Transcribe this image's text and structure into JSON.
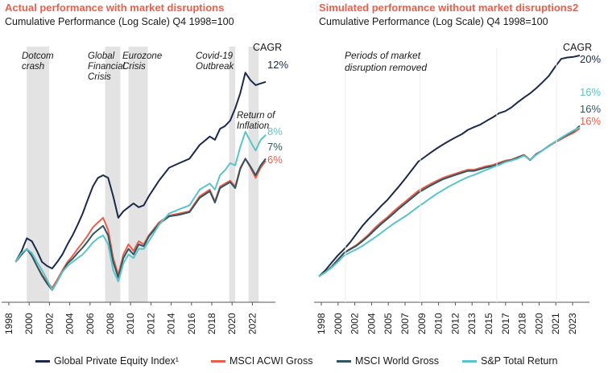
{
  "chart_data": [
    {
      "type": "line",
      "title": "Actual performance with market disruptions",
      "subtitle": "Cumulative Performance (Log Scale) Q4 1998=100",
      "yscale": "log",
      "x_ticks": [
        "1998",
        "2000",
        "2002",
        "2004",
        "2006",
        "2008",
        "2010",
        "2012",
        "2014",
        "2016",
        "2018",
        "2020",
        "2022"
      ],
      "cagr_label": "CAGR",
      "cagr": [
        {
          "series": "Global Private Equity Index¹",
          "label": "12%",
          "color": "#1b2a4a"
        },
        {
          "series": "S&P Total Return",
          "label": "8%",
          "color": "#5bc4c8"
        },
        {
          "series": "MSCI World Gross",
          "label": "7%",
          "color": "#2e5560"
        },
        {
          "series": "MSCI ACWI Gross",
          "label": "6%",
          "color": "#e8604c"
        }
      ],
      "annotations": [
        {
          "text": "Dotcom\ncrash",
          "period": [
            2000.0,
            2002.2
          ]
        },
        {
          "text": "Global\nFinancial\nCrisis",
          "period": [
            2007.7,
            2009.2
          ]
        },
        {
          "text": "Eurozone\nCrisis",
          "period": [
            2010.0,
            2011.9
          ]
        },
        {
          "text": "Covid-19\nOutbreak",
          "period": [
            2019.9,
            2020.5
          ]
        },
        {
          "text": "Return of\nInflation",
          "period": [
            2021.8,
            2022.8
          ]
        }
      ],
      "series": [
        {
          "name": "Global Private Equity Index¹",
          "color": "#1b2a4a",
          "x": [
            1998.9,
            1999.5,
            2000.0,
            2000.5,
            2001.0,
            2001.5,
            2002.0,
            2002.5,
            2003.0,
            2003.5,
            2004.0,
            2004.5,
            2005.0,
            2005.5,
            2006.0,
            2006.5,
            2007.0,
            2007.5,
            2008.0,
            2008.5,
            2009.0,
            2009.5,
            2010.0,
            2010.5,
            2011.0,
            2011.5,
            2012.0,
            2013.0,
            2014.0,
            2015.0,
            2016.0,
            2017.0,
            2018.0,
            2018.5,
            2019.0,
            2019.5,
            2020.0,
            2020.5,
            2021.0,
            2021.5,
            2022.0,
            2022.5,
            2023.0,
            2023.5
          ],
          "values": [
            100,
            115,
            135,
            130,
            115,
            100,
            95,
            92,
            100,
            110,
            125,
            140,
            160,
            185,
            220,
            260,
            290,
            300,
            290,
            230,
            175,
            190,
            200,
            210,
            200,
            205,
            230,
            280,
            330,
            350,
            370,
            440,
            490,
            470,
            540,
            560,
            600,
            700,
            850,
            1100,
            1000,
            940,
            960,
            980
          ]
        },
        {
          "name": "MSCI ACWI Gross",
          "color": "#e8604c",
          "x": [
            1998.9,
            1999.5,
            2000.0,
            2000.5,
            2001.0,
            2001.5,
            2002.0,
            2002.5,
            2003.0,
            2003.5,
            2004.0,
            2004.5,
            2005.0,
            2005.5,
            2006.0,
            2006.5,
            2007.0,
            2007.5,
            2008.0,
            2008.5,
            2009.0,
            2009.5,
            2010.0,
            2010.5,
            2011.0,
            2011.5,
            2012.0,
            2013.0,
            2014.0,
            2015.0,
            2016.0,
            2017.0,
            2018.0,
            2018.5,
            2019.0,
            2019.5,
            2020.0,
            2020.5,
            2021.0,
            2021.5,
            2022.0,
            2022.5,
            2023.0,
            2023.5
          ],
          "values": [
            100,
            110,
            118,
            108,
            95,
            85,
            78,
            72,
            80,
            90,
            100,
            108,
            118,
            128,
            140,
            155,
            165,
            175,
            150,
            105,
            85,
            110,
            125,
            115,
            130,
            125,
            140,
            165,
            180,
            185,
            190,
            230,
            250,
            215,
            260,
            270,
            280,
            260,
            330,
            370,
            330,
            290,
            330,
            360
          ]
        },
        {
          "name": "MSCI World Gross",
          "color": "#2e5560",
          "x": [
            1998.9,
            1999.5,
            2000.0,
            2000.5,
            2001.0,
            2001.5,
            2002.0,
            2002.5,
            2003.0,
            2003.5,
            2004.0,
            2004.5,
            2005.0,
            2005.5,
            2006.0,
            2006.5,
            2007.0,
            2007.5,
            2008.0,
            2008.5,
            2009.0,
            2009.5,
            2010.0,
            2010.5,
            2011.0,
            2011.5,
            2012.0,
            2013.0,
            2014.0,
            2015.0,
            2016.0,
            2017.0,
            2018.0,
            2018.5,
            2019.0,
            2019.5,
            2020.0,
            2020.5,
            2021.0,
            2021.5,
            2022.0,
            2022.5,
            2023.0,
            2023.5
          ],
          "values": [
            100,
            110,
            118,
            108,
            95,
            84,
            76,
            70,
            78,
            88,
            98,
            104,
            112,
            120,
            130,
            142,
            150,
            158,
            140,
            100,
            82,
            105,
            118,
            110,
            125,
            122,
            138,
            162,
            178,
            182,
            188,
            225,
            245,
            212,
            255,
            265,
            275,
            255,
            325,
            370,
            335,
            300,
            340,
            370
          ]
        },
        {
          "name": "S&P Total Return",
          "color": "#5bc4c8",
          "x": [
            1998.9,
            1999.5,
            2000.0,
            2000.5,
            2001.0,
            2001.5,
            2002.0,
            2002.5,
            2003.0,
            2003.5,
            2004.0,
            2004.5,
            2005.0,
            2005.5,
            2006.0,
            2006.5,
            2007.0,
            2007.5,
            2008.0,
            2008.5,
            2009.0,
            2009.5,
            2010.0,
            2010.5,
            2011.0,
            2011.5,
            2012.0,
            2013.0,
            2014.0,
            2015.0,
            2016.0,
            2017.0,
            2018.0,
            2018.5,
            2019.0,
            2019.5,
            2020.0,
            2020.5,
            2021.0,
            2021.5,
            2022.0,
            2022.5,
            2023.0,
            2023.5
          ],
          "values": [
            100,
            112,
            118,
            112,
            100,
            90,
            80,
            70,
            78,
            88,
            95,
            100,
            105,
            110,
            118,
            128,
            135,
            140,
            125,
            90,
            78,
            98,
            110,
            105,
            118,
            118,
            130,
            160,
            185,
            195,
            205,
            250,
            270,
            250,
            300,
            320,
            350,
            340,
            430,
            520,
            460,
            410,
            470,
            500
          ]
        }
      ]
    },
    {
      "type": "line",
      "title": "Simulated performance without market disruptions2",
      "subtitle": "Cumulative Performance (Log Scale) Q4 1998=100",
      "yscale": "log",
      "x_ticks": [
        "1998",
        "2000",
        "2002",
        "2004",
        "2005",
        "2007",
        "2009",
        "2010",
        "2012",
        "2013",
        "2015",
        "2017",
        "2018",
        "2020",
        "2021",
        "2023"
      ],
      "cagr_label": "CAGR",
      "cagr": [
        {
          "series": "Global Private Equity Index¹",
          "label": "20%",
          "color": "#1b2a4a"
        },
        {
          "series": "S&P Total Return",
          "label": "16%",
          "color": "#5bc4c8"
        },
        {
          "series": "MSCI World Gross",
          "label": "16%",
          "color": "#2e5560"
        },
        {
          "series": "MSCI ACWI Gross",
          "label": "16%",
          "color": "#e8604c"
        }
      ],
      "annotations": [
        {
          "text": "Periods of market\ndisruption removed"
        }
      ],
      "series": [
        {
          "name": "Global Private Equity Index¹",
          "color": "#1b2a4a",
          "x": [
            0,
            0.5,
            1,
            1.5,
            2,
            2.5,
            3,
            3.5,
            4,
            4.5,
            5,
            5.5,
            6,
            6.5,
            7,
            7.5,
            8,
            8.5,
            9,
            9.5,
            10,
            10.5,
            11,
            11.5,
            12,
            12.5,
            13,
            13.5,
            14,
            14.5,
            15,
            15.5,
            16,
            16.5,
            17,
            17.5,
            18,
            18.5,
            19,
            19.5,
            20,
            20.5,
            21
          ],
          "values": [
            100,
            112,
            130,
            150,
            170,
            195,
            230,
            270,
            310,
            350,
            400,
            450,
            520,
            600,
            700,
            820,
            960,
            1050,
            1150,
            1250,
            1350,
            1450,
            1550,
            1650,
            1800,
            1900,
            2000,
            2150,
            2300,
            2500,
            2600,
            2800,
            3100,
            3400,
            3700,
            4100,
            4600,
            5200,
            6200,
            7300,
            7500,
            7600,
            7800
          ]
        },
        {
          "name": "MSCI ACWI Gross",
          "color": "#e8604c",
          "x": [
            0,
            0.5,
            1,
            1.5,
            2,
            2.5,
            3,
            3.5,
            4,
            4.5,
            5,
            5.5,
            6,
            6.5,
            7,
            7.5,
            8,
            8.5,
            9,
            9.5,
            10,
            10.5,
            11,
            11.5,
            12,
            12.5,
            13,
            13.5,
            14,
            14.5,
            15,
            15.5,
            16,
            16.5,
            17,
            17.5,
            18,
            18.5,
            19,
            19.5,
            20,
            20.5,
            21
          ],
          "values": [
            100,
            108,
            120,
            138,
            158,
            172,
            185,
            205,
            228,
            260,
            290,
            320,
            360,
            400,
            440,
            490,
            540,
            580,
            620,
            660,
            700,
            730,
            760,
            790,
            820,
            820,
            850,
            880,
            900,
            940,
            980,
            1000,
            1050,
            1100,
            1000,
            1120,
            1200,
            1300,
            1400,
            1500,
            1600,
            1700,
            1850
          ]
        },
        {
          "name": "MSCI World Gross",
          "color": "#2e5560",
          "x": [
            0,
            0.5,
            1,
            1.5,
            2,
            2.5,
            3,
            3.5,
            4,
            4.5,
            5,
            5.5,
            6,
            6.5,
            7,
            7.5,
            8,
            8.5,
            9,
            9.5,
            10,
            10.5,
            11,
            11.5,
            12,
            12.5,
            13,
            13.5,
            14,
            14.5,
            15,
            15.5,
            16,
            16.5,
            17,
            17.5,
            18,
            18.5,
            19,
            19.5,
            20,
            20.5,
            21
          ],
          "values": [
            100,
            108,
            120,
            138,
            158,
            170,
            182,
            200,
            222,
            250,
            280,
            310,
            345,
            385,
            425,
            470,
            520,
            560,
            600,
            640,
            680,
            710,
            740,
            770,
            800,
            800,
            830,
            860,
            880,
            920,
            960,
            990,
            1040,
            1090,
            990,
            1110,
            1200,
            1310,
            1420,
            1530,
            1640,
            1750,
            1950
          ]
        },
        {
          "name": "S&P Total Return",
          "color": "#5bc4c8",
          "x": [
            0,
            0.5,
            1,
            1.5,
            2,
            2.5,
            3,
            3.5,
            4,
            4.5,
            5,
            5.5,
            6,
            6.5,
            7,
            7.5,
            8,
            8.5,
            9,
            9.5,
            10,
            10.5,
            11,
            11.5,
            12,
            12.5,
            13,
            13.5,
            14,
            14.5,
            15,
            15.5,
            16,
            16.5,
            17,
            17.5,
            18,
            18.5,
            19,
            19.5,
            20,
            20.5,
            21
          ],
          "values": [
            100,
            108,
            118,
            132,
            150,
            160,
            170,
            182,
            198,
            215,
            235,
            258,
            282,
            305,
            330,
            360,
            395,
            430,
            470,
            510,
            550,
            590,
            630,
            670,
            710,
            740,
            780,
            820,
            860,
            900,
            950,
            980,
            1020,
            1080,
            1000,
            1100,
            1200,
            1300,
            1420,
            1540,
            1660,
            1780,
            1900
          ]
        }
      ]
    }
  ],
  "legend": [
    {
      "label": "Global Private Equity Index¹",
      "color": "#1b2a4a"
    },
    {
      "label": "MSCI ACWI Gross",
      "color": "#e8604c"
    },
    {
      "label": "MSCI World Gross",
      "color": "#2e5560"
    },
    {
      "label": "S&P Total Return",
      "color": "#5bc4c8"
    }
  ]
}
